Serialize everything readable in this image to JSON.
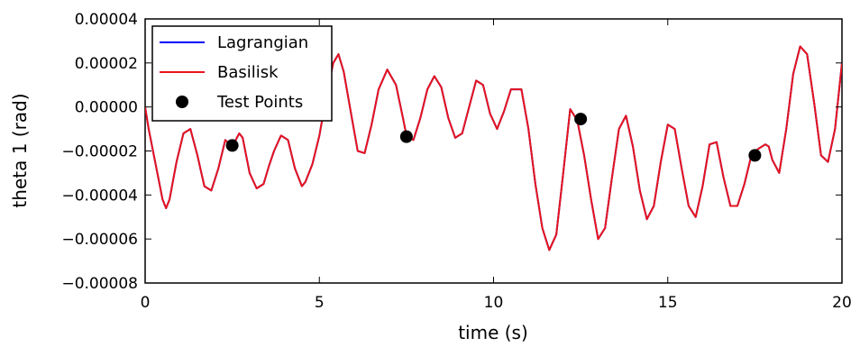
{
  "chart_data": {
    "type": "line",
    "xlabel": "time (s)",
    "ylabel": "theta 1 (rad)",
    "xlim": [
      0,
      20
    ],
    "ylim": [
      -8e-05,
      4e-05
    ],
    "xticks": [
      0,
      5,
      10,
      15,
      20
    ],
    "xtick_labels": [
      "0",
      "5",
      "10",
      "15",
      "20"
    ],
    "yticks": [
      4e-05,
      2e-05,
      0.0,
      -2e-05,
      -4e-05,
      -6e-05,
      -8e-05
    ],
    "ytick_labels": [
      "0.00004",
      "0.00002",
      "0.00000",
      "−0.00002",
      "−0.00004",
      "−0.00006",
      "−0.00008"
    ],
    "grid": false,
    "legend_position": "top-left",
    "series": [
      {
        "name": "Lagrangian",
        "kind": "line",
        "color": "#0000ff",
        "x": [
          0,
          0.1,
          0.25,
          0.5,
          0.6,
          0.7,
          0.9,
          1.1,
          1.3,
          1.5,
          1.7,
          1.9,
          2.1,
          2.3,
          2.5,
          2.7,
          2.8,
          3.0,
          3.2,
          3.4,
          3.55,
          3.7,
          3.9,
          4.1,
          4.3,
          4.5,
          4.6,
          4.8,
          5.0,
          5.2,
          5.4,
          5.55,
          5.7,
          5.9,
          6.1,
          6.3,
          6.5,
          6.7,
          6.95,
          7.2,
          7.4,
          7.5,
          7.7,
          7.9,
          8.1,
          8.3,
          8.5,
          8.7,
          8.9,
          9.1,
          9.3,
          9.5,
          9.7,
          9.9,
          10.1,
          10.3,
          10.5,
          10.8,
          11.0,
          11.2,
          11.4,
          11.6,
          11.8,
          12.0,
          12.2,
          12.4,
          12.6,
          12.8,
          13.0,
          13.2,
          13.4,
          13.6,
          13.8,
          14.0,
          14.2,
          14.4,
          14.6,
          14.8,
          15.0,
          15.2,
          15.4,
          15.6,
          15.8,
          16.0,
          16.2,
          16.4,
          16.6,
          16.8,
          17.0,
          17.2,
          17.4,
          17.6,
          17.8,
          17.9,
          18.0,
          18.2,
          18.4,
          18.6,
          18.8,
          19.0,
          19.2,
          19.4,
          19.6,
          19.8,
          20.0
        ],
        "y": [
          0.0,
          -1e-05,
          -2.2e-05,
          -4.2e-05,
          -4.6e-05,
          -4.2e-05,
          -2.5e-05,
          -1.2e-05,
          -1e-05,
          -2.2e-05,
          -3.6e-05,
          -3.8e-05,
          -2.8e-05,
          -1.5e-05,
          -1.8e-05,
          -1.2e-05,
          -1.4e-05,
          -3e-05,
          -3.7e-05,
          -3.5e-05,
          -2.7e-05,
          -2e-05,
          -1.3e-05,
          -1.5e-05,
          -2.8e-05,
          -3.6e-05,
          -3.4e-05,
          -2.6e-05,
          -1.3e-05,
          5e-06,
          2e-05,
          2.4e-05,
          1.6e-05,
          -2e-06,
          -2e-05,
          -2.1e-05,
          -8e-06,
          8e-06,
          1.7e-05,
          1e-05,
          -5e-06,
          -1.3e-05,
          -1.5e-05,
          -5e-06,
          8e-06,
          1.4e-05,
          9e-06,
          -5e-06,
          -1.4e-05,
          -1.2e-05,
          0.0,
          1.2e-05,
          1e-05,
          -3e-06,
          -1e-05,
          -2e-06,
          8e-06,
          8e-06,
          -1e-05,
          -3.5e-05,
          -5.5e-05,
          -6.5e-05,
          -5.8e-05,
          -3e-05,
          -1e-06,
          -6e-06,
          -2.2e-05,
          -4.2e-05,
          -6e-05,
          -5.5e-05,
          -3.2e-05,
          -1e-05,
          -4e-06,
          -1.8e-05,
          -3.8e-05,
          -5.1e-05,
          -4.5e-05,
          -2.5e-05,
          -8e-06,
          -1e-05,
          -2.8e-05,
          -4.5e-05,
          -5e-05,
          -3.6e-05,
          -1.7e-05,
          -1.6e-05,
          -3.2e-05,
          -4.5e-05,
          -4.5e-05,
          -3.5e-05,
          -2.2e-05,
          -1.9e-05,
          -1.7e-05,
          -1.8e-05,
          -2.4e-05,
          -3e-05,
          -1e-05,
          1.5e-05,
          2.75e-05,
          2.4e-05,
          2e-06,
          -2.2e-05,
          -2.5e-05,
          -1e-05,
          2e-05
        ]
      },
      {
        "name": "Basilisk",
        "kind": "line",
        "color": "#e8141c",
        "same_as": "Lagrangian"
      },
      {
        "name": "Test Points",
        "kind": "scatter",
        "color": "#000000",
        "x": [
          2.5,
          7.5,
          12.5,
          17.5
        ],
        "y": [
          -1.75e-05,
          -1.35e-05,
          -5.5e-06,
          -2.2e-05
        ]
      }
    ]
  }
}
